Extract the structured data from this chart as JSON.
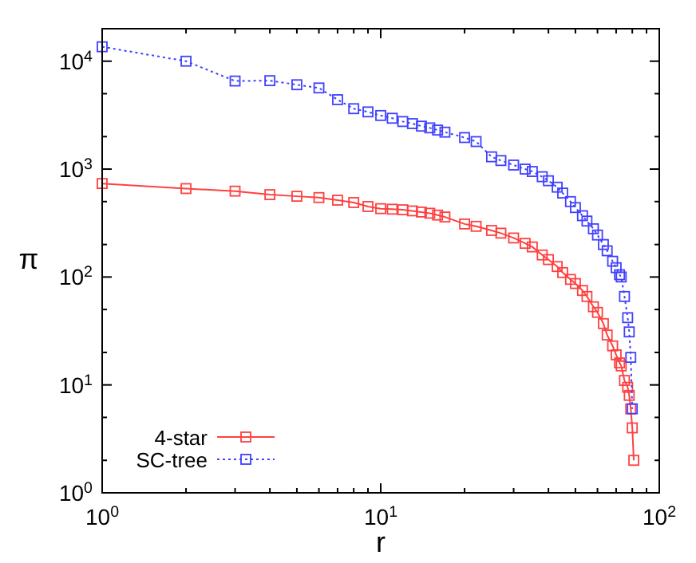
{
  "chart_data": {
    "type": "line",
    "xlabel": "r",
    "ylabel": "π",
    "log": "xy",
    "marker": "square",
    "legend": "bottom left",
    "xlim": [
      1,
      100
    ],
    "ylim": [
      1,
      20000
    ],
    "xticks": [
      {
        "value": 1,
        "label": "10$^{0}$"
      },
      {
        "value": 2,
        "label": null
      },
      {
        "value": 3,
        "label": null
      },
      {
        "value": 4,
        "label": null
      },
      {
        "value": 5,
        "label": null
      },
      {
        "value": 6,
        "label": null
      },
      {
        "value": 7,
        "label": null
      },
      {
        "value": 8,
        "label": null
      },
      {
        "value": 9,
        "label": null
      },
      {
        "value": 10,
        "label": "10$^{1}$"
      },
      {
        "value": 20,
        "label": null
      },
      {
        "value": 30,
        "label": null
      },
      {
        "value": 40,
        "label": null
      },
      {
        "value": 50,
        "label": null
      },
      {
        "value": 60,
        "label": null
      },
      {
        "value": 70,
        "label": null
      },
      {
        "value": 80,
        "label": null
      },
      {
        "value": 90,
        "label": null
      },
      {
        "value": 100,
        "label": "10$^{2}$"
      }
    ],
    "yticks": [
      {
        "value": 1,
        "label": "10$^{0}$"
      },
      {
        "value": 2,
        "label": null
      },
      {
        "value": 5,
        "label": null
      },
      {
        "value": 10,
        "label": "10$^{1}$"
      },
      {
        "value": 20,
        "label": null
      },
      {
        "value": 50,
        "label": null
      },
      {
        "value": 100,
        "label": "10$^{2}$"
      },
      {
        "value": 200,
        "label": null
      },
      {
        "value": 500,
        "label": null
      },
      {
        "value": 1000,
        "label": "10$^{3}$"
      },
      {
        "value": 2000,
        "label": null
      },
      {
        "value": 5000,
        "label": null
      },
      {
        "value": 10000,
        "label": "10$^{4}$"
      }
    ],
    "series": [
      {
        "name": "4-star",
        "color": "#ff4040",
        "line_style": "solid",
        "x": [
          1,
          2,
          3,
          4,
          5,
          6,
          7,
          8,
          9,
          10,
          11,
          12,
          13,
          14,
          15,
          16,
          17,
          20,
          22,
          25,
          27,
          30,
          33,
          35,
          38,
          40,
          43,
          45,
          48,
          50,
          53,
          55,
          58,
          60,
          63,
          65,
          68,
          70,
          72,
          73,
          75,
          77,
          78,
          79,
          80,
          81
        ],
        "values": [
          735,
          660,
          625,
          580,
          560,
          545,
          515,
          490,
          450,
          430,
          425,
          420,
          410,
          400,
          390,
          375,
          360,
          310,
          295,
          270,
          255,
          230,
          205,
          190,
          160,
          145,
          125,
          110,
          95,
          87,
          75,
          66,
          53,
          47,
          37,
          29,
          23,
          19,
          16,
          15,
          11,
          9.5,
          8,
          6,
          4,
          2
        ]
      },
      {
        "name": "SC-tree",
        "color": "#4040ff",
        "line_style": "dotted",
        "x": [
          1,
          2,
          3,
          4,
          5,
          6,
          7,
          8,
          9,
          10,
          11,
          12,
          13,
          14,
          15,
          16,
          17,
          20,
          22,
          25,
          27,
          30,
          33,
          35,
          38,
          40,
          43,
          45,
          48,
          50,
          53,
          55,
          58,
          60,
          63,
          65,
          68,
          70,
          72,
          73,
          75,
          77,
          78,
          79,
          80
        ],
        "values": [
          13600,
          10000,
          6550,
          6600,
          6050,
          5650,
          4400,
          3630,
          3390,
          3140,
          2960,
          2760,
          2640,
          2500,
          2410,
          2300,
          2200,
          1960,
          1800,
          1300,
          1200,
          1090,
          1000,
          950,
          850,
          780,
          680,
          600,
          500,
          440,
          370,
          330,
          280,
          245,
          200,
          175,
          140,
          122,
          105,
          100,
          66,
          42,
          31,
          18,
          6
        ]
      }
    ]
  }
}
